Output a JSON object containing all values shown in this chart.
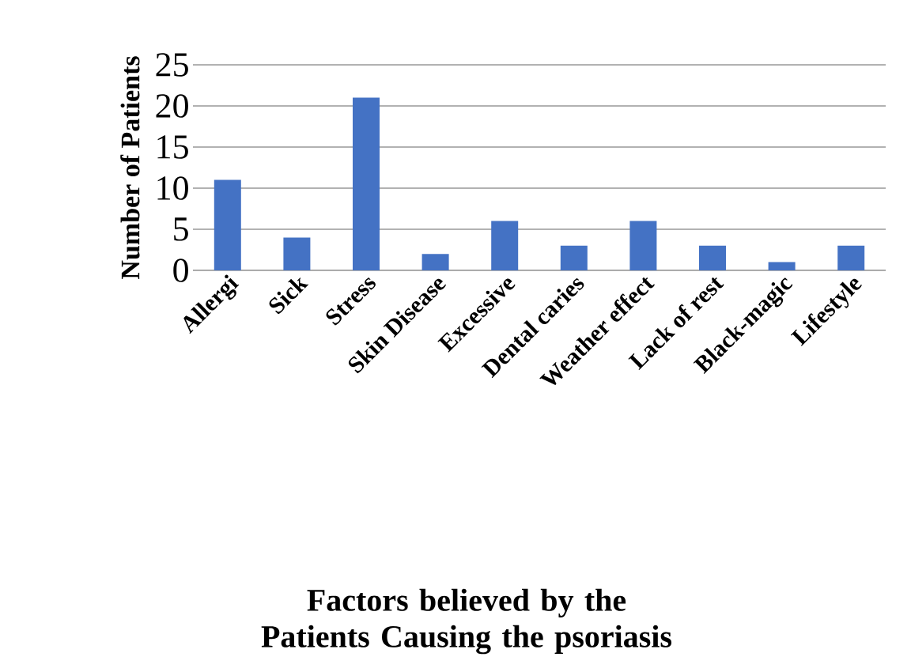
{
  "chart_data": {
    "type": "bar",
    "title": "Factors believed by the Patients Causing the psoriasis",
    "ylabel": "Number of Patients",
    "categories": [
      "Allergi",
      "Sick",
      "Stress",
      "Skin Disease",
      "Excessive",
      "Dental caries",
      "Weather effect",
      "Lack of rest",
      "Black-magic",
      "Lifestyle"
    ],
    "values": [
      11,
      4,
      21,
      2,
      6,
      3,
      6,
      3,
      1,
      3
    ],
    "color": "#4472c4",
    "ylim": [
      0,
      25
    ],
    "yticks": [
      0,
      5,
      10,
      15,
      20,
      25
    ],
    "grid": "y"
  }
}
